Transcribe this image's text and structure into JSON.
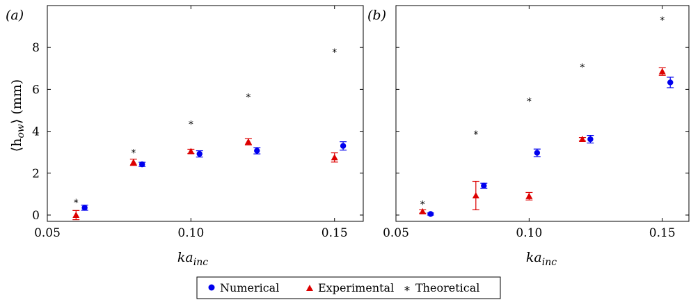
{
  "colors": {
    "numerical": "#0000ee",
    "experimental": "#dd0000",
    "theoretical": "#000000"
  },
  "legend": {
    "numerical": "Numerical",
    "experimental": "Experimental",
    "theoretical": "Theoretical",
    "theoretical_marker": "*"
  },
  "chart_data": [
    {
      "type": "scatter",
      "panel": "(a)",
      "xlabel_main": "ka",
      "xlabel_sub": "inc",
      "ylabel_prefix": "⟨h",
      "ylabel_sub": "ow",
      "ylabel_suffix": "⟩ (mm)",
      "xlim": [
        0.05,
        0.16
      ],
      "ylim": [
        -0.3,
        10
      ],
      "xticks": [
        "0.05",
        "0.10",
        "0.15"
      ],
      "xtick_values": [
        0.05,
        0.1,
        0.15
      ],
      "yticks": [
        "0",
        "2",
        "4",
        "6",
        "8"
      ],
      "ytick_values": [
        0,
        2,
        4,
        6,
        8
      ],
      "legend_position": "bottom-center",
      "series": [
        {
          "name": "Numerical",
          "marker": "circle",
          "x": [
            0.063,
            0.083,
            0.103,
            0.123,
            0.153
          ],
          "y": [
            0.35,
            2.42,
            2.92,
            3.07,
            3.3
          ],
          "err": [
            0.12,
            0.1,
            0.15,
            0.15,
            0.2
          ]
        },
        {
          "name": "Experimental",
          "marker": "triangle",
          "x": [
            0.06,
            0.08,
            0.1,
            0.12,
            0.15
          ],
          "y": [
            0.0,
            2.52,
            3.04,
            3.5,
            2.75
          ],
          "err": [
            0.22,
            0.15,
            0.1,
            0.15,
            0.22
          ]
        },
        {
          "name": "Theoretical",
          "marker": "asterisk",
          "x": [
            0.06,
            0.08,
            0.1,
            0.12,
            0.15
          ],
          "y": [
            0.63,
            3.0,
            4.37,
            5.67,
            7.8
          ],
          "err": [
            0,
            0,
            0,
            0,
            0
          ]
        }
      ]
    },
    {
      "type": "scatter",
      "panel": "(b)",
      "xlabel_main": "ka",
      "xlabel_sub": "inc",
      "xlim": [
        0.05,
        0.16
      ],
      "ylim": [
        -0.3,
        10
      ],
      "xticks": [
        "0.05",
        "0.10",
        "0.15"
      ],
      "xtick_values": [
        0.05,
        0.1,
        0.15
      ],
      "ytick_values": [
        0,
        2,
        4,
        6,
        8
      ],
      "series": [
        {
          "name": "Numerical",
          "marker": "circle",
          "x": [
            0.063,
            0.083,
            0.103,
            0.123,
            0.153
          ],
          "y": [
            0.05,
            1.4,
            2.97,
            3.62,
            6.33
          ],
          "err": [
            0.05,
            0.12,
            0.18,
            0.18,
            0.25
          ]
        },
        {
          "name": "Experimental",
          "marker": "triangle",
          "x": [
            0.06,
            0.08,
            0.1,
            0.12,
            0.15
          ],
          "y": [
            0.17,
            0.93,
            0.9,
            3.62,
            6.85
          ],
          "err": [
            0.08,
            0.68,
            0.18,
            0.08,
            0.18
          ]
        },
        {
          "name": "Theoretical",
          "marker": "asterisk",
          "x": [
            0.06,
            0.08,
            0.1,
            0.12,
            0.15
          ],
          "y": [
            0.55,
            3.88,
            5.47,
            7.1,
            9.33
          ],
          "err": [
            0,
            0,
            0,
            0,
            0
          ]
        }
      ]
    }
  ]
}
